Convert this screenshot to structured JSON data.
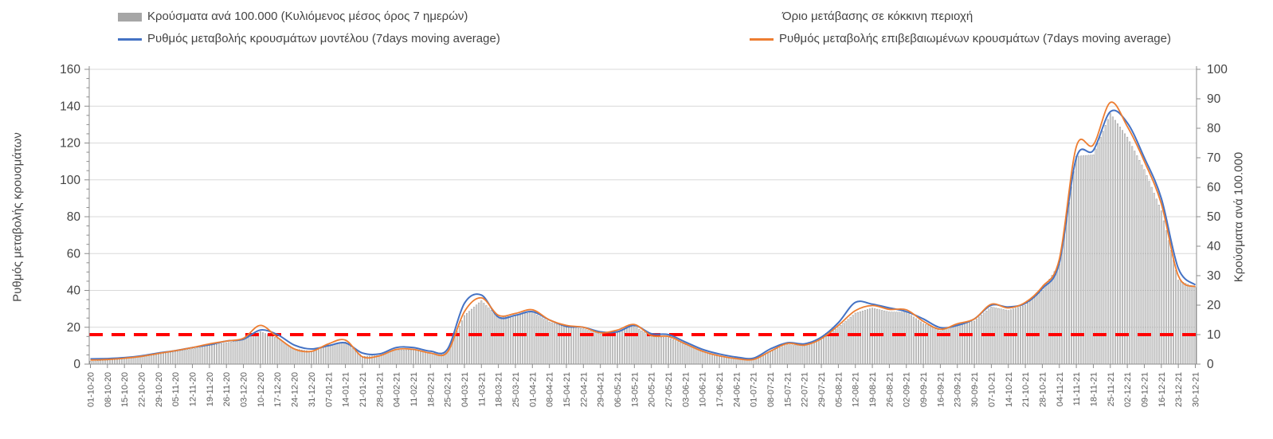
{
  "legend": {
    "items": [
      {
        "id": "cases",
        "label": "Κρούσματα ανά 100.000 (Κυλιόμενος μέσος όρος 7 ημερών)",
        "swatch": "bar",
        "color": "#a6a6a6"
      },
      {
        "id": "model",
        "label": "Ρυθμός μεταβολής κρουσμάτων μοντέλου (7days moving average)",
        "swatch": "line",
        "color": "#4472c4"
      },
      {
        "id": "threshold",
        "label": "Όριο μετάβασης σε κόκκινη περιοχή",
        "swatch": "dashes",
        "color": "#ff0000"
      },
      {
        "id": "confirmed",
        "label": "Ρυθμός μεταβολής επιβεβαιωμένων κρουσμάτων (7days moving average)",
        "swatch": "line",
        "color": "#ed7d31"
      }
    ]
  },
  "chart_data": {
    "type": "combo bar+line, dual axis",
    "title": "",
    "grid": "horizontal gridlines every 20 units of left axis",
    "legend_position": "top",
    "left_axis": {
      "title": "Ρυθμός μεταβολής κρουσμάτων",
      "min": 0,
      "max": 160,
      "step": 20,
      "ticks": [
        0,
        20,
        40,
        60,
        80,
        100,
        120,
        140,
        160
      ],
      "minor_step": 5
    },
    "right_axis": {
      "title": "Κρούσματα ανά 100.000",
      "min": 0,
      "max": 100,
      "step": 10,
      "ticks": [
        0,
        10,
        20,
        30,
        40,
        50,
        60,
        70,
        80,
        90,
        100
      ]
    },
    "x_labels": [
      "01-10-20",
      "08-10-20",
      "15-10-20",
      "22-10-20",
      "29-10-20",
      "05-11-20",
      "12-11-20",
      "19-11-20",
      "26-11-20",
      "03-12-20",
      "10-12-20",
      "17-12-20",
      "24-12-20",
      "31-12-20",
      "07-01-21",
      "14-01-21",
      "21-01-21",
      "28-01-21",
      "04-02-21",
      "11-02-21",
      "18-02-21",
      "25-02-21",
      "04-03-21",
      "11-03-21",
      "18-03-21",
      "25-03-21",
      "01-04-21",
      "08-04-21",
      "15-04-21",
      "22-04-21",
      "29-04-21",
      "06-05-21",
      "13-05-21",
      "20-05-21",
      "27-05-21",
      "03-06-21",
      "10-06-21",
      "17-06-21",
      "24-06-21",
      "01-07-21",
      "08-07-21",
      "15-07-21",
      "22-07-21",
      "29-07-21",
      "05-08-21",
      "12-08-21",
      "19-08-21",
      "26-08-21",
      "02-09-21",
      "09-09-21",
      "16-09-21",
      "23-09-21",
      "30-09-21",
      "07-10-21",
      "14-10-21",
      "21-10-21",
      "28-10-21",
      "04-11-21",
      "11-11-21",
      "18-11-21",
      "25-11-21",
      "02-12-21",
      "09-12-21",
      "16-12-21",
      "23-12-21",
      "30-12-21"
    ],
    "series": [
      {
        "name": "Κρούσματα ανά 100.000 (Κυλιόμενος μέσος όρος 7 ημερών)",
        "type": "bar",
        "axis": "right",
        "color": "#e0e0e0",
        "edge_color": "#8c8c8c",
        "values": [
          1.0,
          1.3,
          1.8,
          2.4,
          3.3,
          4.2,
          5.2,
          6.3,
          7.2,
          8.2,
          11.0,
          8.8,
          5.2,
          4.3,
          6.5,
          7.5,
          2.6,
          2.9,
          4.8,
          4.8,
          3.6,
          4.0,
          16.5,
          21.5,
          15.8,
          16.4,
          17.6,
          14.3,
          12.5,
          12.0,
          10.2,
          11.0,
          12.8,
          9.3,
          9.0,
          6.6,
          4.2,
          2.7,
          1.8,
          1.5,
          4.2,
          6.7,
          6.2,
          8.2,
          12.5,
          17.3,
          19.0,
          17.7,
          17.6,
          13.8,
          11.3,
          13.1,
          14.6,
          19.4,
          18.2,
          20.0,
          25.0,
          34.0,
          70.5,
          71.0,
          85.0,
          77.0,
          66.0,
          52.0,
          28.5,
          26.0
        ]
      },
      {
        "name": "Ρυθμός μεταβολής κρουσμάτων μοντέλου (7days moving average)",
        "type": "line",
        "axis": "left",
        "color": "#4472c4",
        "values": [
          2.8,
          3.0,
          3.5,
          4.5,
          6.0,
          7.3,
          9.0,
          10.5,
          12.5,
          13.5,
          18.5,
          16.0,
          10.3,
          8.2,
          10.0,
          11.5,
          6.0,
          5.5,
          9.0,
          9.0,
          7.0,
          8.0,
          33.0,
          37.5,
          25.5,
          26.5,
          28.5,
          24.0,
          20.5,
          20.0,
          17.5,
          17.5,
          21.0,
          16.5,
          16.0,
          12.0,
          8.0,
          5.5,
          3.8,
          3.2,
          8.2,
          11.6,
          11.0,
          14.6,
          22.5,
          33.5,
          32.5,
          30.5,
          28.5,
          24.5,
          19.8,
          21.0,
          24.5,
          32.0,
          31.0,
          33.0,
          41.0,
          55.0,
          112.0,
          116.0,
          137.0,
          131.0,
          112.0,
          90.0,
          52.0,
          43.0
        ]
      },
      {
        "name": "Ρυθμός μεταβολής επιβεβαιωμένων κρουσμάτων (7days moving average)",
        "type": "line",
        "axis": "left",
        "color": "#ed7d31",
        "values": [
          2.2,
          2.5,
          3.2,
          4.2,
          5.8,
          7.3,
          9.0,
          11.0,
          12.5,
          14.0,
          21.0,
          14.5,
          8.2,
          6.9,
          11.0,
          13.0,
          4.0,
          4.5,
          8.0,
          8.0,
          6.0,
          6.5,
          28.5,
          36.0,
          26.5,
          27.5,
          29.5,
          24.0,
          21.0,
          20.0,
          17.0,
          18.5,
          21.5,
          15.5,
          15.0,
          11.0,
          7.0,
          4.5,
          3.0,
          2.5,
          7.0,
          11.2,
          10.3,
          13.8,
          21.0,
          29.0,
          31.8,
          29.7,
          29.5,
          23.2,
          18.9,
          21.9,
          24.5,
          32.5,
          30.5,
          33.5,
          42.0,
          57.0,
          118.0,
          119.0,
          142.0,
          129.0,
          110.0,
          87.0,
          48.0,
          42.0
        ]
      },
      {
        "name": "Όριο μετάβασης σε κόκκινη περιοχή",
        "type": "threshold",
        "axis": "right",
        "color": "#ff0000",
        "value": 10
      }
    ]
  }
}
